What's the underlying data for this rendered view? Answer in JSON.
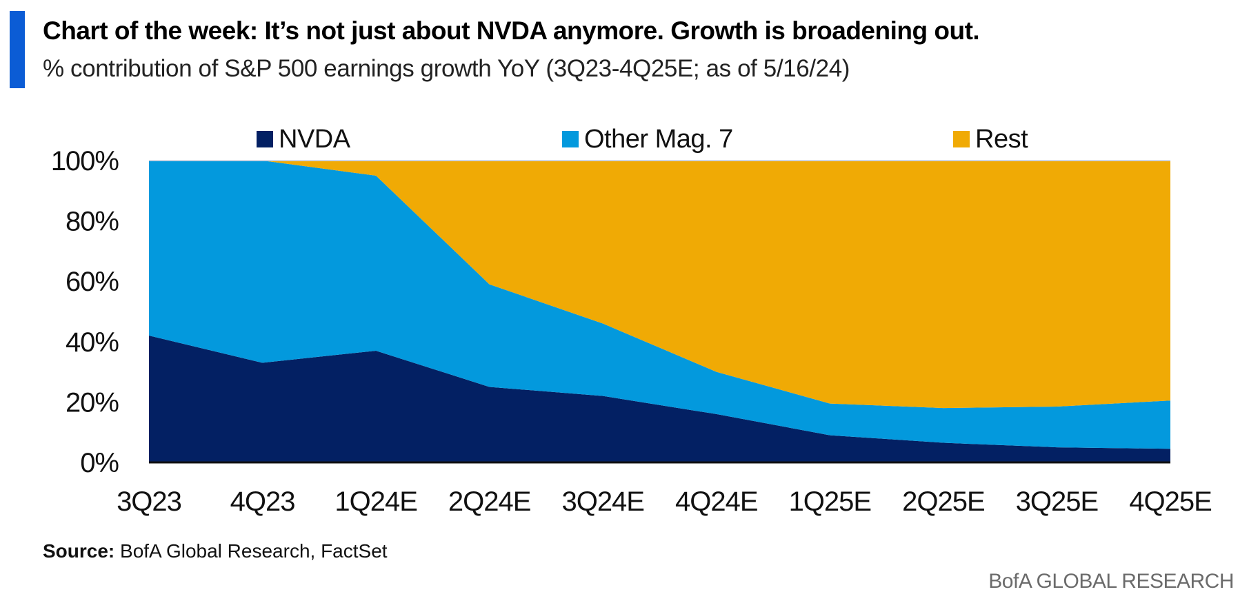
{
  "header": {
    "title": "Chart of the week: It’s not just about NVDA anymore. Growth is broadening out.",
    "subtitle": "% contribution of S&P 500 earnings growth YoY (3Q23-4Q25E; as of 5/16/24)"
  },
  "footer": {
    "source_label": "Source:",
    "source_text": " BofA Global Research, FactSet",
    "brand": "BofA GLOBAL RESEARCH"
  },
  "colors": {
    "accent": "#0b5cd5",
    "nvda": "#032063",
    "other_mag7": "#0399dd",
    "rest": "#f0aa05"
  },
  "chart_data": {
    "type": "area",
    "stacked": true,
    "categories": [
      "3Q23",
      "4Q23",
      "1Q24E",
      "2Q24E",
      "3Q24E",
      "4Q24E",
      "1Q25E",
      "2Q25E",
      "3Q25E",
      "4Q25E"
    ],
    "series": [
      {
        "name": "NVDA",
        "color": "#032063",
        "values": [
          42,
          33,
          37,
          25,
          22,
          16,
          9,
          6.5,
          5,
          4.5
        ]
      },
      {
        "name": "Other Mag. 7",
        "color": "#0399dd",
        "values": [
          58,
          67,
          58,
          34,
          24,
          14,
          10.5,
          11.5,
          13.5,
          16
        ]
      },
      {
        "name": "Rest",
        "color": "#f0aa05",
        "values": [
          0,
          0,
          5,
          41,
          54,
          70,
          80.5,
          82,
          81.5,
          79.5
        ]
      }
    ],
    "ylim": [
      0,
      100
    ],
    "y_ticks": [
      "0%",
      "20%",
      "40%",
      "60%",
      "80%",
      "100%"
    ],
    "y_tick_values": [
      0,
      20,
      40,
      60,
      80,
      100
    ],
    "legend_position": "top",
    "grid": false
  }
}
